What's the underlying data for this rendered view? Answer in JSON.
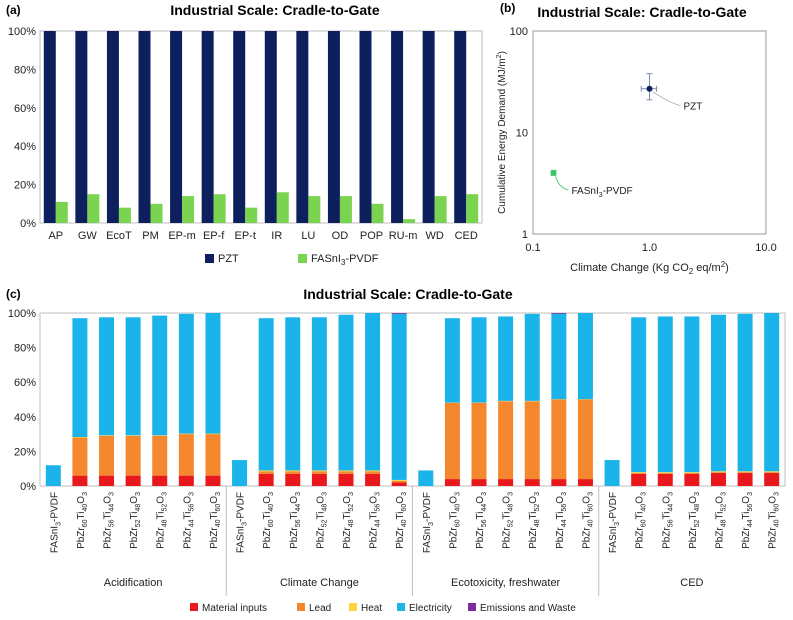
{
  "panels": {
    "a": "(a)",
    "b": "(b)",
    "c": "(c)"
  },
  "chart_data": [
    {
      "id": "a",
      "type": "bar",
      "title": "Industrial Scale: Cradle-to-Gate",
      "categories": [
        "AP",
        "GW",
        "EcoT",
        "PM",
        "EP-m",
        "EP-f",
        "EP-t",
        "IR",
        "LU",
        "OD",
        "POP",
        "RU-m",
        "WD",
        "CED"
      ],
      "series": [
        {
          "name": "PZT",
          "color": "#0d1f5c",
          "values": [
            100,
            100,
            100,
            100,
            100,
            100,
            100,
            100,
            100,
            100,
            100,
            100,
            100,
            100
          ]
        },
        {
          "name": "FASnI3-PVDF",
          "color": "#7bd44f",
          "values": [
            11,
            15,
            8,
            10,
            14,
            15,
            8,
            16,
            14,
            14,
            10,
            2,
            14,
            15
          ]
        }
      ],
      "legend": [
        {
          "pre": "PZT",
          "sub": "",
          "post": ""
        },
        {
          "pre": "FASnI",
          "sub": "3",
          "post": "-PVDF"
        }
      ],
      "yticks": [
        "0%",
        "20%",
        "40%",
        "60%",
        "80%",
        "100%"
      ],
      "ylim": [
        0,
        100
      ]
    },
    {
      "id": "b",
      "type": "scatter",
      "title": "Industrial Scale: Cradle-to-Gate",
      "xscale": "log",
      "yscale": "log",
      "xlim": [
        0.1,
        10
      ],
      "ylim": [
        1,
        100
      ],
      "xticks": [
        "0.1",
        "1.0",
        "10.0"
      ],
      "yticks": [
        "1",
        "10",
        "100"
      ],
      "xlabel": {
        "pre": "Climate Change (Kg CO",
        "sub": "2",
        "mid": " eq/m",
        "sup": "2",
        "post": ")"
      },
      "ylabel": {
        "pre": "Cumulative Energy Demand (MJ/m",
        "sup": "2",
        "post": ")"
      },
      "points": [
        {
          "name": "PZT",
          "x": 1.0,
          "y": 27,
          "xerr": [
            0.85,
            1.15
          ],
          "yerr": [
            21,
            38
          ],
          "color": "#0d1f5c",
          "label": {
            "pre": "PZT",
            "sub": "",
            "post": ""
          }
        },
        {
          "name": "FASnI3-PVDF",
          "x": 0.15,
          "y": 4.0,
          "xerr": [
            0.145,
            0.155
          ],
          "yerr": [
            3.8,
            4.2
          ],
          "color": "#3cc46a",
          "label": {
            "pre": "FASnI",
            "sub": "3",
            "post": "-PVDF"
          }
        }
      ]
    },
    {
      "id": "c",
      "type": "bar",
      "stacked": true,
      "title": "Industrial Scale: Cradle-to-Gate",
      "yticks": [
        "0%",
        "20%",
        "40%",
        "60%",
        "80%",
        "100%"
      ],
      "ylim": [
        0,
        100
      ],
      "stack_names": [
        "Material inputs",
        "Lead",
        "Heat",
        "Electricity",
        "Emissions and Waste"
      ],
      "stack_colors": [
        "#e8181c",
        "#f5882f",
        "#ffd23e",
        "#1bb4ea",
        "#7b2f9e"
      ],
      "groups": [
        {
          "name": "Acidification",
          "bars": [
            {
              "label": "FASnI3-PVDF",
              "values": [
                0,
                0,
                0,
                12,
                0
              ]
            },
            {
              "label": "PbZr60Ti40O3",
              "values": [
                6,
                22,
                0.3,
                68.7,
                0
              ]
            },
            {
              "label": "PbZr56Ti44O3",
              "values": [
                6,
                23,
                0.3,
                68.2,
                0
              ]
            },
            {
              "label": "PbZr52Ti48O3",
              "values": [
                6,
                23,
                0.3,
                68.2,
                0
              ]
            },
            {
              "label": "PbZr48Ti52O3",
              "values": [
                6,
                23,
                0.3,
                69.2,
                0
              ]
            },
            {
              "label": "PbZr44Ti56O3",
              "values": [
                6,
                24,
                0.3,
                69.2,
                0
              ]
            },
            {
              "label": "PbZr40Ti60O3",
              "values": [
                6,
                24,
                0.3,
                69.7,
                0
              ]
            }
          ]
        },
        {
          "name": "Climate Change",
          "bars": [
            {
              "label": "FASnI3-PVDF",
              "values": [
                0,
                0,
                0,
                15,
                0
              ]
            },
            {
              "label": "PbZr60Ti40O3",
              "values": [
                7,
                1.5,
                0.5,
                88,
                0
              ]
            },
            {
              "label": "PbZr56Ti44O3",
              "values": [
                7,
                1.5,
                0.5,
                88.5,
                0
              ]
            },
            {
              "label": "PbZr52Ti48O3",
              "values": [
                7,
                1.5,
                0.5,
                88.5,
                0
              ]
            },
            {
              "label": "PbZr48Ti52O3",
              "values": [
                7,
                1.5,
                0.5,
                90,
                0
              ]
            },
            {
              "label": "PbZr44Ti56O3",
              "values": [
                7,
                1.5,
                0.5,
                91,
                0
              ]
            },
            {
              "label": "PbZr40Ti60O3",
              "values": [
                2,
                1,
                0.5,
                96,
                0.5
              ]
            }
          ]
        },
        {
          "name": "Ecotoxicity, freshwater",
          "bars": [
            {
              "label": "FASnI3-PVDF",
              "values": [
                0,
                0,
                0,
                9,
                0
              ]
            },
            {
              "label": "PbZr60Ti40O3",
              "values": [
                4,
                44,
                0.2,
                48.8,
                0
              ]
            },
            {
              "label": "PbZr56Ti44O3",
              "values": [
                4,
                44,
                0.2,
                49.3,
                0
              ]
            },
            {
              "label": "PbZr52Ti48O3",
              "values": [
                4,
                45,
                0.2,
                48.8,
                0
              ]
            },
            {
              "label": "PbZr48Ti52O3",
              "values": [
                4,
                45,
                0.2,
                50.3,
                0
              ]
            },
            {
              "label": "PbZr44Ti56O3",
              "values": [
                4,
                46,
                0.2,
                49.3,
                0.5
              ]
            },
            {
              "label": "PbZr40Ti60O3",
              "values": [
                4,
                46,
                0.2,
                49.8,
                0
              ]
            }
          ]
        },
        {
          "name": "CED",
          "bars": [
            {
              "label": "FASnI3-PVDF",
              "values": [
                0,
                0,
                0,
                15,
                0
              ]
            },
            {
              "label": "PbZr60Ti40O3",
              "values": [
                7,
                0.5,
                0.5,
                89.5,
                0
              ]
            },
            {
              "label": "PbZr56Ti44O3",
              "values": [
                7,
                0.5,
                0.5,
                90,
                0
              ]
            },
            {
              "label": "PbZr52Ti48O3",
              "values": [
                7,
                0.5,
                0.5,
                90,
                0
              ]
            },
            {
              "label": "PbZr48Ti52O3",
              "values": [
                7.5,
                0.5,
                0.5,
                90.5,
                0
              ]
            },
            {
              "label": "PbZr44Ti56O3",
              "values": [
                7.5,
                0.5,
                0.5,
                91,
                0
              ]
            },
            {
              "label": "PbZr40Ti60O3",
              "values": [
                7.5,
                0.5,
                0.5,
                91.5,
                0
              ]
            }
          ]
        }
      ]
    }
  ]
}
